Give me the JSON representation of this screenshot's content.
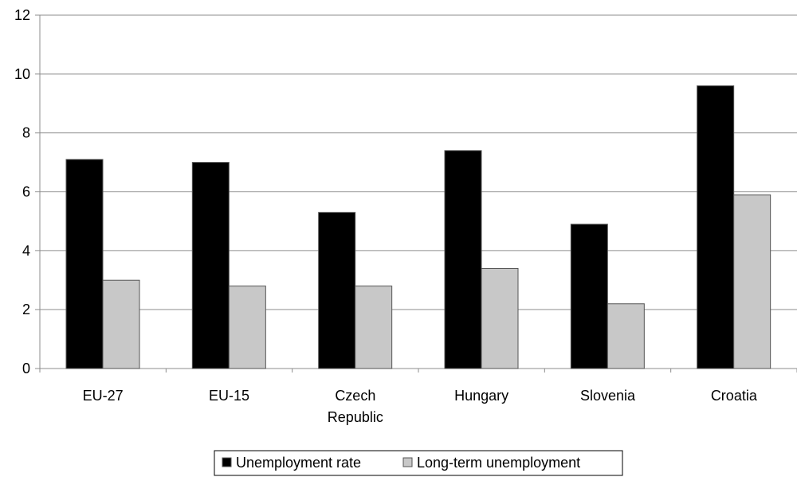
{
  "chart_data": {
    "type": "bar",
    "title": "",
    "xlabel": "",
    "ylabel": "",
    "categories": [
      [
        "EU-27"
      ],
      [
        "EU-15"
      ],
      [
        "Czech",
        "Republic"
      ],
      [
        "Hungary"
      ],
      [
        "Slovenia"
      ],
      [
        "Croatia"
      ]
    ],
    "series": [
      {
        "name": "Unemployment rate",
        "color": "#000000",
        "values": [
          7.1,
          7.0,
          5.3,
          7.4,
          4.9,
          9.6
        ]
      },
      {
        "name": "Long-term unemployment",
        "color": "#c8c8c8",
        "values": [
          3.0,
          2.8,
          2.8,
          3.4,
          2.2,
          5.9
        ]
      }
    ],
    "ylim": [
      0,
      12
    ],
    "yticks": [
      0,
      2,
      4,
      6,
      8,
      10,
      12
    ],
    "grid": true,
    "legend_position": "bottom"
  }
}
